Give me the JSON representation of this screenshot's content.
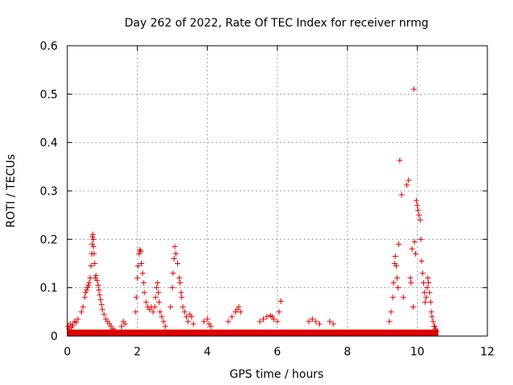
{
  "chart_data": {
    "type": "scatter",
    "title": "Day 262 of 2022, Rate Of TEC Index for receiver nrmg",
    "xlabel": "GPS time / hours",
    "ylabel": "ROTI / TECUs",
    "xlim": [
      0,
      12
    ],
    "ylim": [
      0,
      0.6
    ],
    "xticks": [
      0,
      2,
      4,
      6,
      8,
      10,
      12
    ],
    "yticks": [
      0,
      0.1,
      0.2,
      0.3,
      0.4,
      0.5,
      0.6
    ],
    "xtick_labels": [
      "0",
      "2",
      "4",
      "6",
      "8",
      "10",
      "12"
    ],
    "ytick_labels": [
      "0",
      "0.1",
      "0.2",
      "0.3",
      "0.4",
      "0.5",
      "0.6"
    ],
    "grid": true,
    "marker": "+",
    "color": "#e00000",
    "baseline_band": {
      "x_range": [
        0.0,
        10.6
      ],
      "y_range": [
        0.0,
        0.03
      ]
    },
    "series": [
      {
        "name": "ROTI",
        "x": [
          0.02,
          0.05,
          0.08,
          0.12,
          0.15,
          0.2,
          0.25,
          0.3,
          0.4,
          0.45,
          0.5,
          0.52,
          0.55,
          0.58,
          0.6,
          0.62,
          0.65,
          0.68,
          0.7,
          0.71,
          0.72,
          0.73,
          0.74,
          0.75,
          0.76,
          0.78,
          0.8,
          0.82,
          0.85,
          0.88,
          0.9,
          0.92,
          0.95,
          0.98,
          1.0,
          1.05,
          1.1,
          1.15,
          1.2,
          1.25,
          1.3,
          1.35,
          1.55,
          1.6,
          1.65,
          1.95,
          1.97,
          2.0,
          2.02,
          2.05,
          2.07,
          2.1,
          2.12,
          2.15,
          2.18,
          2.2,
          2.25,
          2.3,
          2.35,
          2.4,
          2.45,
          2.5,
          2.52,
          2.55,
          2.58,
          2.6,
          2.62,
          2.65,
          2.7,
          2.75,
          2.8,
          2.95,
          3.0,
          3.02,
          3.05,
          3.07,
          3.1,
          3.15,
          3.2,
          3.22,
          3.25,
          3.27,
          3.3,
          3.35,
          3.4,
          3.45,
          3.5,
          3.55,
          3.6,
          3.9,
          4.0,
          4.05,
          4.1,
          4.6,
          4.7,
          4.8,
          4.85,
          4.9,
          4.95,
          5.5,
          5.6,
          5.7,
          5.8,
          5.85,
          5.9,
          6.0,
          6.05,
          6.1,
          6.9,
          7.0,
          7.1,
          7.2,
          7.5,
          7.6,
          9.2,
          9.25,
          9.3,
          9.32,
          9.35,
          9.37,
          9.4,
          9.42,
          9.45,
          9.47,
          9.5,
          9.55,
          9.6,
          9.7,
          9.75,
          9.8,
          9.82,
          9.85,
          9.88,
          9.9,
          9.92,
          9.95,
          9.97,
          10.0,
          10.02,
          10.05,
          10.08,
          10.1,
          10.12,
          10.15,
          10.18,
          10.2,
          10.22,
          10.25,
          10.28,
          10.3,
          10.32,
          10.35,
          10.38,
          10.4,
          10.42,
          10.45,
          10.48,
          10.5,
          10.52,
          10.55
        ],
        "y": [
          0.02,
          0.015,
          0.025,
          0.018,
          0.022,
          0.03,
          0.028,
          0.035,
          0.05,
          0.06,
          0.08,
          0.09,
          0.095,
          0.1,
          0.105,
          0.11,
          0.12,
          0.145,
          0.17,
          0.19,
          0.205,
          0.21,
          0.2,
          0.185,
          0.17,
          0.15,
          0.12,
          0.125,
          0.115,
          0.105,
          0.095,
          0.085,
          0.075,
          0.065,
          0.055,
          0.045,
          0.035,
          0.03,
          0.025,
          0.02,
          0.015,
          0.012,
          0.02,
          0.03,
          0.025,
          0.05,
          0.08,
          0.12,
          0.145,
          0.17,
          0.178,
          0.175,
          0.15,
          0.13,
          0.11,
          0.09,
          0.07,
          0.06,
          0.055,
          0.06,
          0.05,
          0.06,
          0.08,
          0.1,
          0.11,
          0.09,
          0.07,
          0.05,
          0.04,
          0.03,
          0.02,
          0.06,
          0.1,
          0.13,
          0.16,
          0.185,
          0.17,
          0.15,
          0.12,
          0.11,
          0.09,
          0.08,
          0.06,
          0.05,
          0.04,
          0.03,
          0.045,
          0.04,
          0.025,
          0.03,
          0.035,
          0.025,
          0.02,
          0.03,
          0.04,
          0.05,
          0.055,
          0.06,
          0.05,
          0.03,
          0.035,
          0.04,
          0.042,
          0.04,
          0.035,
          0.03,
          0.05,
          0.072,
          0.03,
          0.035,
          0.03,
          0.025,
          0.03,
          0.025,
          0.03,
          0.05,
          0.08,
          0.11,
          0.15,
          0.165,
          0.145,
          0.12,
          0.1,
          0.19,
          0.363,
          0.292,
          0.08,
          0.312,
          0.322,
          0.12,
          0.11,
          0.18,
          0.06,
          0.51,
          0.195,
          0.17,
          0.28,
          0.27,
          0.26,
          0.25,
          0.24,
          0.2,
          0.155,
          0.13,
          0.11,
          0.09,
          0.07,
          0.08,
          0.1,
          0.12,
          0.11,
          0.09,
          0.07,
          0.05,
          0.04,
          0.03,
          0.02,
          0.02,
          0.015,
          0.01
        ]
      }
    ]
  }
}
